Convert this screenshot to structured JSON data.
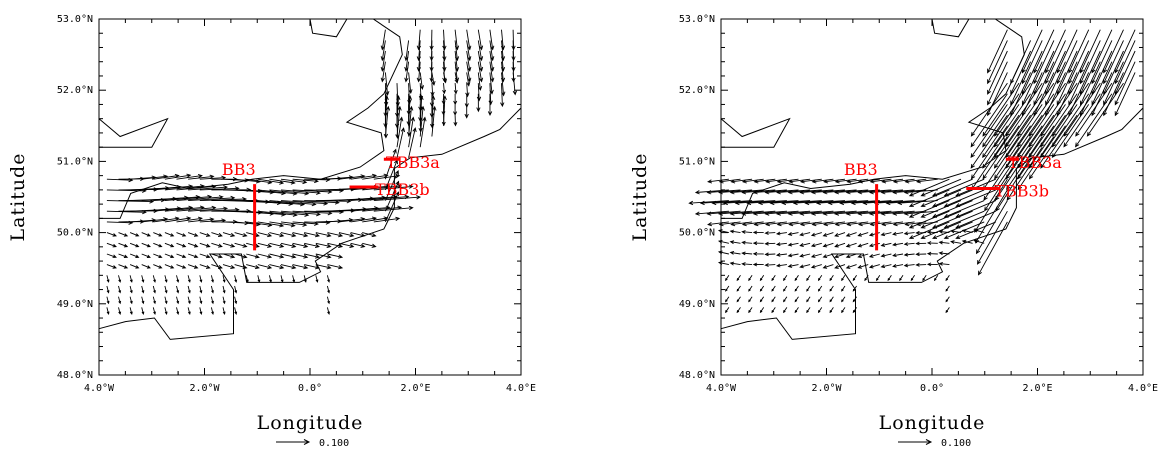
{
  "colors": {
    "section_lines": "#ff0000",
    "coastline": "#000000",
    "vectors": "#000000",
    "frame": "#000000"
  },
  "chart_data": [
    {
      "type": "vector-map",
      "panel": "left",
      "xlabel": "Longitude",
      "ylabel": "Latitude",
      "xlim": [
        -4,
        4
      ],
      "ylim": [
        48,
        53
      ],
      "x_ticks": [
        -4,
        -2,
        0,
        2,
        4
      ],
      "x_tick_labels": [
        "4.0°W",
        "2.0°W",
        "0.0°",
        "2.0°E",
        "4.0°E"
      ],
      "y_ticks": [
        48,
        49,
        50,
        51,
        52,
        53
      ],
      "y_tick_labels": [
        "48.0°N",
        "49.0°N",
        "50.0°N",
        "51.0°N",
        "52.0°N",
        "53.0°N"
      ],
      "reference_vector": {
        "magnitude": 0.1,
        "label": "0.100"
      },
      "sections": [
        {
          "name": "BB3",
          "lon": [
            -1.05,
            -1.05
          ],
          "lat": [
            49.75,
            50.68
          ],
          "label_lon": -1.35,
          "label_lat": 50.88
        },
        {
          "name": "TBB3a",
          "lon": [
            1.4,
            1.7
          ],
          "lat": [
            51.03,
            51.03
          ],
          "label_lon": 1.95,
          "label_lat": 50.98
        },
        {
          "name": "TBB3b",
          "lon": [
            0.75,
            1.3
          ],
          "lat": [
            50.64,
            50.64
          ],
          "label_lon": 1.75,
          "label_lat": 50.6
        }
      ],
      "flow_field": "left"
    },
    {
      "type": "vector-map",
      "panel": "right",
      "xlabel": "Longitude",
      "ylabel": "Latitude",
      "xlim": [
        -4,
        4
      ],
      "ylim": [
        48,
        53
      ],
      "x_ticks": [
        -4,
        -2,
        0,
        2,
        4
      ],
      "x_tick_labels": [
        "4.0°W",
        "2.0°W",
        "0.0°",
        "2.0°E",
        "4.0°E"
      ],
      "y_ticks": [
        48,
        49,
        50,
        51,
        52,
        53
      ],
      "y_tick_labels": [
        "48.0°N",
        "49.0°N",
        "50.0°N",
        "51.0°N",
        "52.0°N",
        "53.0°N"
      ],
      "reference_vector": {
        "magnitude": 0.1,
        "label": "0.100"
      },
      "sections": [
        {
          "name": "BB3",
          "lon": [
            -1.05,
            -1.05
          ],
          "lat": [
            49.75,
            50.68
          ],
          "label_lon": -1.35,
          "label_lat": 50.88
        },
        {
          "name": "TBB3a",
          "lon": [
            1.4,
            1.65
          ],
          "lat": [
            51.03,
            51.03
          ],
          "label_lon": 1.95,
          "label_lat": 50.98
        },
        {
          "name": "TBB3b",
          "lon": [
            0.65,
            1.3
          ],
          "lat": [
            50.62,
            50.62
          ],
          "label_lon": 1.7,
          "label_lat": 50.58
        }
      ],
      "flow_field": "right"
    }
  ],
  "coastline": {
    "france": [
      [
        -4,
        48.65
      ],
      [
        -3.5,
        48.75
      ],
      [
        -2.95,
        48.8
      ],
      [
        -2.65,
        48.5
      ],
      [
        -1.45,
        48.58
      ],
      [
        -1.45,
        49.2
      ],
      [
        -1.9,
        49.7
      ],
      [
        -1.3,
        49.7
      ],
      [
        -1.2,
        49.3
      ],
      [
        -0.2,
        49.3
      ],
      [
        0.2,
        49.45
      ],
      [
        0.1,
        49.6
      ],
      [
        0.6,
        49.85
      ],
      [
        1.4,
        50.05
      ],
      [
        1.6,
        50.35
      ],
      [
        1.6,
        50.9
      ],
      [
        1.9,
        51.05
      ],
      [
        2.5,
        51.1
      ],
      [
        3.3,
        51.35
      ],
      [
        3.6,
        51.45
      ],
      [
        4,
        51.75
      ]
    ],
    "britain": [
      [
        -4,
        50.2
      ],
      [
        -3.6,
        50.2
      ],
      [
        -3.4,
        50.55
      ],
      [
        -2.8,
        50.7
      ],
      [
        -2.3,
        50.62
      ],
      [
        -1.55,
        50.68
      ],
      [
        -1.1,
        50.75
      ],
      [
        -0.5,
        50.8
      ],
      [
        0.2,
        50.75
      ],
      [
        0.95,
        50.92
      ],
      [
        1.4,
        51.15
      ],
      [
        1.35,
        51.4
      ],
      [
        0.7,
        51.55
      ],
      [
        1.1,
        51.75
      ],
      [
        1.4,
        51.95
      ],
      [
        1.75,
        52.5
      ],
      [
        1.7,
        52.75
      ],
      [
        1.3,
        52.95
      ],
      [
        1.2,
        53.0
      ]
    ],
    "wales": [
      [
        -4,
        51.6
      ],
      [
        -3.6,
        51.35
      ],
      [
        -2.7,
        51.6
      ],
      [
        -3.0,
        51.2
      ],
      [
        -4,
        51.2
      ]
    ],
    "east_anglia_cap": [
      [
        0,
        53
      ],
      [
        0.05,
        52.8
      ],
      [
        0.5,
        52.75
      ],
      [
        0.7,
        53
      ]
    ]
  }
}
